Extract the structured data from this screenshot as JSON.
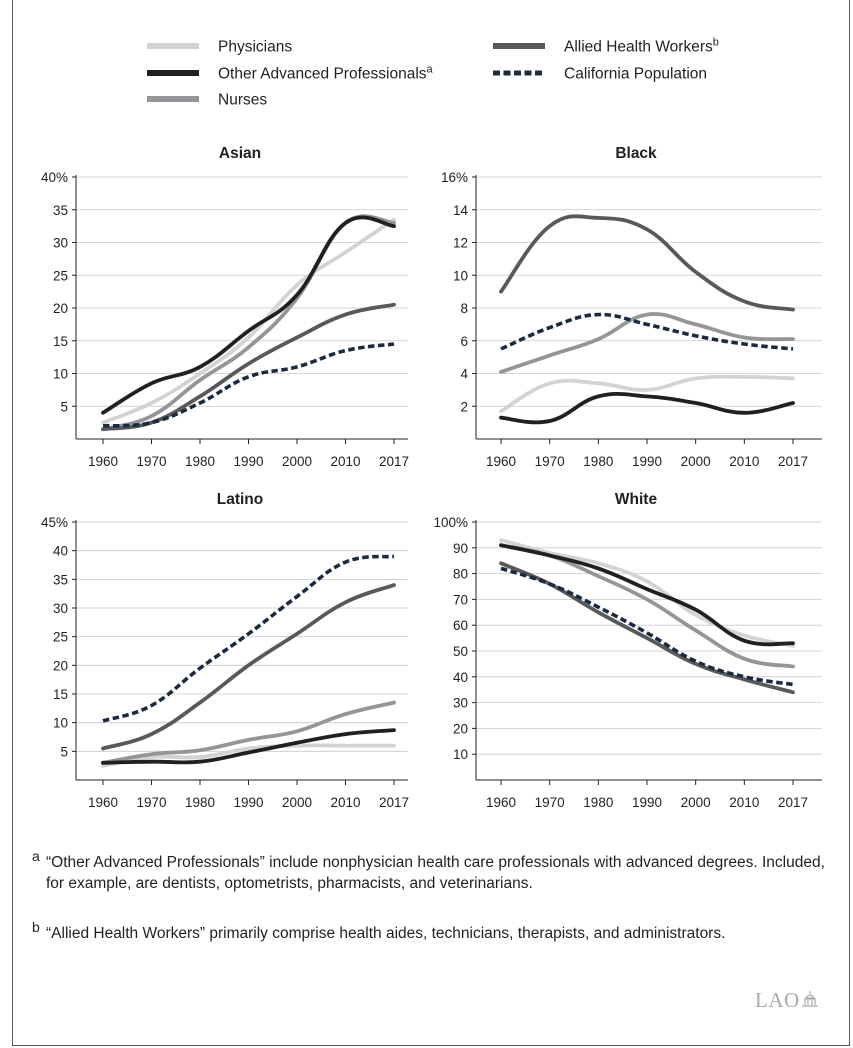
{
  "legend": [
    {
      "key": "physicians",
      "label": "Physicians",
      "sup": "",
      "color": "#d1d3d4",
      "dashed": false
    },
    {
      "key": "other",
      "label": "Other Advanced Professionals",
      "sup": "a",
      "color": "#231f20",
      "dashed": false
    },
    {
      "key": "nurses",
      "label": "Nurses",
      "sup": "",
      "color": "#939598",
      "dashed": false
    },
    {
      "key": "allied",
      "label": "Allied Health Workers",
      "sup": "b",
      "color": "#58595b",
      "dashed": false
    },
    {
      "key": "population",
      "label": "California Population",
      "sup": "",
      "color": "#1b2a3e",
      "dashed": true
    }
  ],
  "chart_data": [
    {
      "type": "line",
      "title": "Asian",
      "x": [
        "1960",
        "1970",
        "1980",
        "1990",
        "2000",
        "2010",
        "2017"
      ],
      "yticks": [
        "5",
        "10",
        "15",
        "20",
        "25",
        "30",
        "35",
        "40%"
      ],
      "ylim": [
        0,
        40
      ],
      "series": [
        {
          "name": "Physicians",
          "values": [
            2.5,
            5.5,
            10,
            15.5,
            23.5,
            28.5,
            33.5
          ]
        },
        {
          "name": "Other Advanced Professionals",
          "values": [
            4,
            8.5,
            11,
            16.5,
            22,
            33,
            32.5
          ]
        },
        {
          "name": "Nurses",
          "values": [
            1.5,
            3.5,
            9,
            14,
            21.5,
            33,
            33
          ]
        },
        {
          "name": "Allied Health Workers",
          "values": [
            1.5,
            2.5,
            6.5,
            11.5,
            15.5,
            19,
            20.5
          ]
        },
        {
          "name": "California Population",
          "values": [
            2,
            2.5,
            5.5,
            9.5,
            11,
            13.5,
            14.5
          ]
        }
      ]
    },
    {
      "type": "line",
      "title": "Black",
      "x": [
        "1960",
        "1970",
        "1980",
        "1990",
        "2000",
        "2010",
        "2017"
      ],
      "yticks": [
        "2",
        "4",
        "6",
        "8",
        "10",
        "12",
        "14",
        "16%"
      ],
      "ylim": [
        0,
        16
      ],
      "series": [
        {
          "name": "Physicians",
          "values": [
            1.7,
            3.4,
            3.4,
            3,
            3.7,
            3.8,
            3.7
          ]
        },
        {
          "name": "Other Advanced Professionals",
          "values": [
            1.3,
            1.1,
            2.6,
            2.6,
            2.2,
            1.6,
            2.2
          ]
        },
        {
          "name": "Nurses",
          "values": [
            4.1,
            5.1,
            6.1,
            7.6,
            7,
            6.2,
            6.1
          ]
        },
        {
          "name": "Allied Health Workers",
          "values": [
            9,
            13,
            13.5,
            12.8,
            10.2,
            8.4,
            7.9
          ]
        },
        {
          "name": "California Population",
          "values": [
            5.5,
            6.8,
            7.6,
            7,
            6.3,
            5.8,
            5.5
          ]
        }
      ]
    },
    {
      "type": "line",
      "title": "Latino",
      "x": [
        "1960",
        "1970",
        "1980",
        "1990",
        "2000",
        "2010",
        "2017"
      ],
      "yticks": [
        "5",
        "10",
        "15",
        "20",
        "25",
        "30",
        "35",
        "40",
        "45%"
      ],
      "ylim": [
        0,
        45
      ],
      "series": [
        {
          "name": "Physicians",
          "values": [
            2.5,
            4,
            4,
            5.5,
            6,
            6,
            6
          ]
        },
        {
          "name": "Other Advanced Professionals",
          "values": [
            3,
            3.2,
            3.2,
            4.8,
            6.5,
            8,
            8.7
          ]
        },
        {
          "name": "Nurses",
          "values": [
            3,
            4.5,
            5.2,
            7,
            8.5,
            11.5,
            13.5
          ]
        },
        {
          "name": "Allied Health Workers",
          "values": [
            5.5,
            8,
            13.5,
            20,
            25.5,
            31,
            34
          ]
        },
        {
          "name": "California Population",
          "values": [
            10.3,
            13,
            19.5,
            25.5,
            32,
            38,
            39
          ]
        }
      ]
    },
    {
      "type": "line",
      "title": "White",
      "x": [
        "1960",
        "1970",
        "1980",
        "1990",
        "2000",
        "2010",
        "2017"
      ],
      "yticks": [
        "10",
        "20",
        "30",
        "40",
        "50",
        "60",
        "70",
        "80",
        "90",
        "100%"
      ],
      "ylim": [
        0,
        100
      ],
      "series": [
        {
          "name": "Physicians",
          "values": [
            93,
            88,
            84,
            77,
            64,
            56,
            52
          ]
        },
        {
          "name": "Other Advanced Professionals",
          "values": [
            91,
            87,
            82,
            74,
            66,
            54,
            53
          ]
        },
        {
          "name": "Nurses",
          "values": [
            91,
            87,
            79,
            70,
            58,
            47,
            44
          ]
        },
        {
          "name": "Allied Health Workers",
          "values": [
            84,
            76,
            65,
            55,
            45,
            39,
            34
          ]
        },
        {
          "name": "California Population",
          "values": [
            82,
            76,
            67,
            57,
            46,
            40,
            37
          ]
        }
      ]
    }
  ],
  "footnotes": [
    {
      "mark": "a",
      "text": "“Other Advanced Professionals” include nonphysician health care professionals with advanced degrees. Included, for example, are dentists, optometrists, pharmacists, and veterinarians."
    },
    {
      "mark": "b",
      "text": "“Allied Health Workers” primarily comprise health aides, technicians, therapists, and administrators."
    }
  ],
  "logo_text": "LAO"
}
